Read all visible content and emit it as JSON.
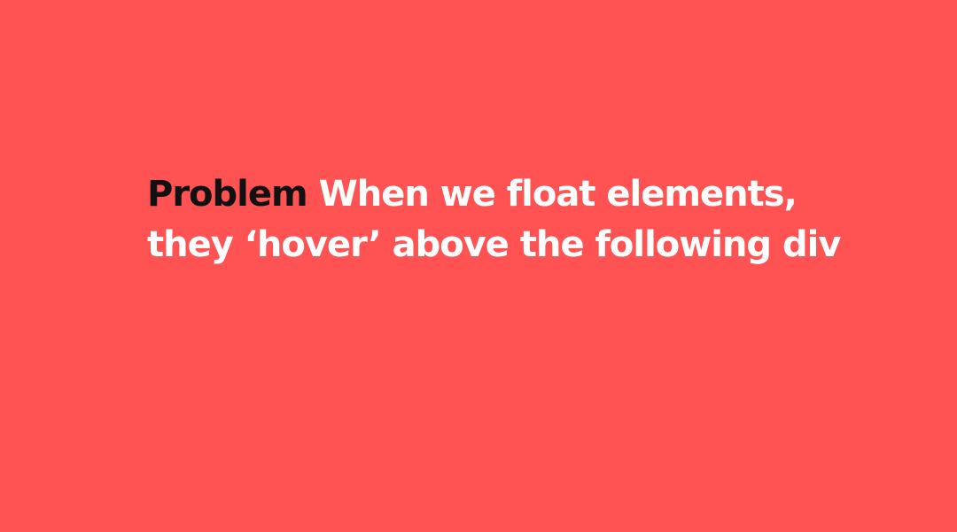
{
  "slide": {
    "keyword": "Problem",
    "line1": "When we float elements,",
    "line2": "they ‘hover’ above the following div"
  },
  "colors": {
    "background": "#FF5353",
    "text": "#FFFFFF",
    "keyword": "#111111"
  }
}
